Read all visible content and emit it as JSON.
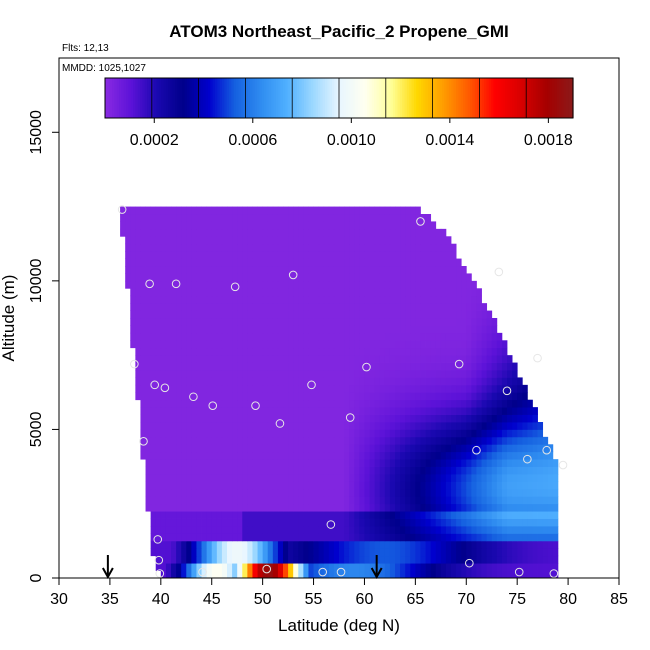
{
  "chart_data": {
    "type": "heatmap",
    "title": "ATOM3 Northeast_Pacific_2 Propene_GMI",
    "flights_label": "Flts: 12,13",
    "dates_label": "MMDD: 1025,1027",
    "xlabel": "Latitude (deg N)",
    "ylabel": "Altitude (m)",
    "xlim": [
      30,
      85
    ],
    "ylim": [
      0,
      17500
    ],
    "x_ticks": [
      "30",
      "35",
      "40",
      "45",
      "50",
      "55",
      "60",
      "65",
      "70",
      "75",
      "80",
      "85"
    ],
    "y_ticks": [
      "0",
      "5000",
      "10000",
      "15000"
    ],
    "colorbar": {
      "range": [
        0.0,
        0.0019
      ],
      "ticks": [
        "0.0002",
        "0.0006",
        "0.0010",
        "0.0014",
        "0.0018"
      ],
      "colors": [
        "#8a2be2",
        "#5c12d8",
        "#1a08b0",
        "#00008b",
        "#0000cd",
        "#1560e0",
        "#2f8cf0",
        "#50b0ff",
        "#9cd8ff",
        "#e8f6ff",
        "#fffff0",
        "#ffff99",
        "#ffd800",
        "#ff9d00",
        "#ff5a00",
        "#ff0000",
        "#d80000",
        "#a50000",
        "#8b1a1a"
      ]
    },
    "extent": {
      "lat_range": [
        36,
        79
      ],
      "top_altitude": 12400
    },
    "arrows_latitude": [
      34.8,
      61.2
    ],
    "observations": [
      {
        "lat": 36.2,
        "alt": 12400
      },
      {
        "lat": 65.5,
        "alt": 12000
      },
      {
        "lat": 73.2,
        "alt": 10300
      },
      {
        "lat": 53.0,
        "alt": 10200
      },
      {
        "lat": 38.9,
        "alt": 9900
      },
      {
        "lat": 41.5,
        "alt": 9900
      },
      {
        "lat": 47.3,
        "alt": 9800
      },
      {
        "lat": 37.4,
        "alt": 7200
      },
      {
        "lat": 60.2,
        "alt": 7100
      },
      {
        "lat": 69.3,
        "alt": 7200
      },
      {
        "lat": 77.0,
        "alt": 7400
      },
      {
        "lat": 39.4,
        "alt": 6500
      },
      {
        "lat": 40.4,
        "alt": 6400
      },
      {
        "lat": 54.8,
        "alt": 6500
      },
      {
        "lat": 74.0,
        "alt": 6300
      },
      {
        "lat": 43.2,
        "alt": 6100
      },
      {
        "lat": 45.1,
        "alt": 5800
      },
      {
        "lat": 49.3,
        "alt": 5800
      },
      {
        "lat": 58.6,
        "alt": 5400
      },
      {
        "lat": 51.7,
        "alt": 5200
      },
      {
        "lat": 38.3,
        "alt": 4600
      },
      {
        "lat": 71.0,
        "alt": 4300
      },
      {
        "lat": 77.9,
        "alt": 4300
      },
      {
        "lat": 76.0,
        "alt": 4000
      },
      {
        "lat": 79.5,
        "alt": 3800
      },
      {
        "lat": 56.7,
        "alt": 1800
      },
      {
        "lat": 39.7,
        "alt": 1300
      },
      {
        "lat": 39.8,
        "alt": 600
      },
      {
        "lat": 70.3,
        "alt": 500
      },
      {
        "lat": 44.1,
        "alt": 200
      },
      {
        "lat": 50.4,
        "alt": 300
      },
      {
        "lat": 55.9,
        "alt": 200
      },
      {
        "lat": 57.7,
        "alt": 200
      },
      {
        "lat": 75.2,
        "alt": 200
      },
      {
        "lat": 78.6,
        "alt": 150
      },
      {
        "lat": 39.9,
        "alt": 150
      }
    ]
  }
}
